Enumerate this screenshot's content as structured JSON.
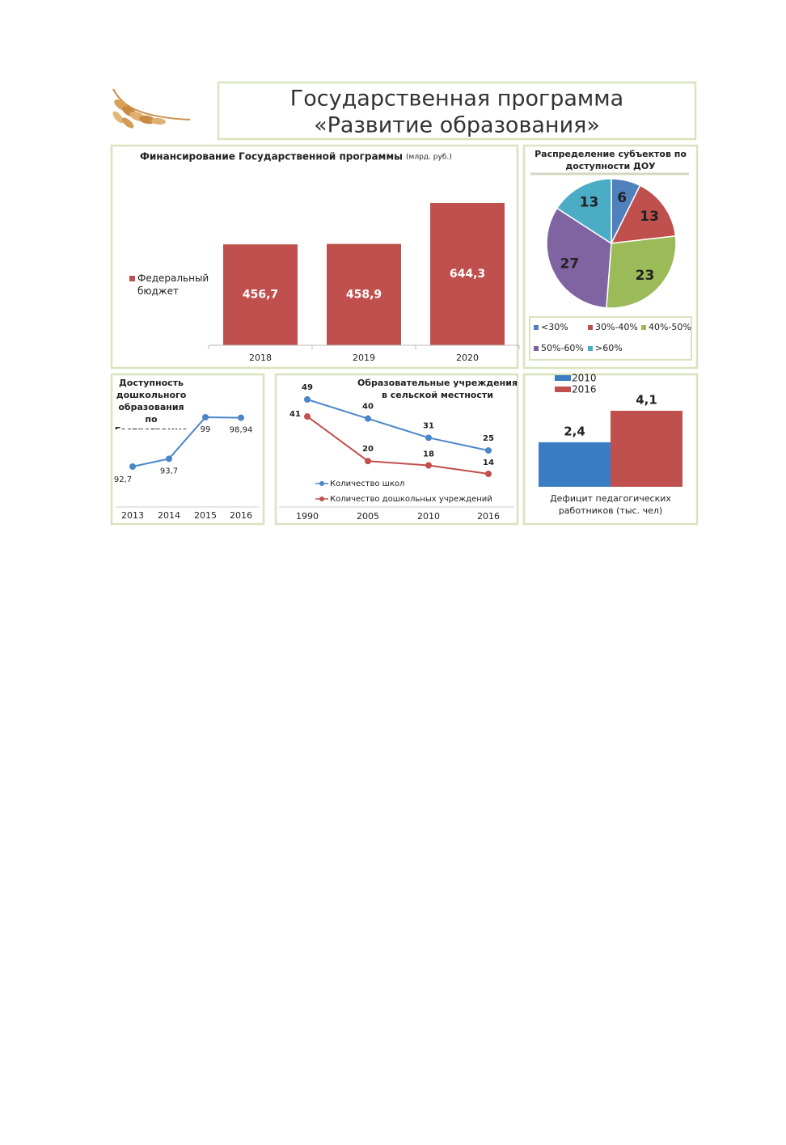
{
  "header": {
    "title": [
      "Государственная программа",
      "«Развитие образования»"
    ]
  },
  "chart_data": [
    {
      "type": "bar",
      "title": "Финансирование Государственной программы",
      "subtitle": "(млрд. руб.)",
      "categories": [
        "2018",
        "2019",
        "2020"
      ],
      "series": [
        {
          "name": "Федеральный бюджет",
          "color": "#c0504d",
          "values": [
            456.7,
            458.9,
            644.3
          ],
          "value_labels": [
            "456,7",
            "458,9",
            "644,3"
          ]
        }
      ]
    },
    {
      "type": "pie",
      "title": "Распределение субъектов по доступности ДОУ",
      "categories": [
        "<30%",
        "30%-40%",
        "40%-50%",
        "50%-60%",
        ">60%"
      ],
      "values": [
        6,
        13,
        23,
        27,
        13
      ],
      "colors": [
        "#4f81bd",
        "#c0504d",
        "#9bbb59",
        "#8064a2",
        "#4bacc6"
      ]
    },
    {
      "type": "line",
      "title": "Доступность дошкольного образования по Госпрограмме",
      "categories": [
        "2013",
        "2014",
        "2015",
        "2016"
      ],
      "series": [
        {
          "color": "#4a86c8",
          "values": [
            92.7,
            93.7,
            99,
            98.94
          ],
          "value_labels": [
            "92,7",
            "93,7",
            "99",
            "98,94"
          ]
        }
      ]
    },
    {
      "type": "line",
      "title": "Образовательные учреждения в сельской местности",
      "categories": [
        "1990",
        "2005",
        "2010",
        "2016"
      ],
      "series": [
        {
          "name": "Количество школ",
          "color": "#4a86c8",
          "values": [
            49,
            40,
            31,
            25
          ]
        },
        {
          "name": "Количество дошкольных учреждений",
          "color": "#c0504d",
          "values": [
            41,
            20,
            18,
            14
          ]
        }
      ]
    },
    {
      "type": "bar",
      "categories": [
        "Дефицит педагогических работников (тыс. чел)"
      ],
      "series": [
        {
          "name": "2010",
          "color": "#3a7dc2",
          "values": [
            2.4
          ],
          "value_labels": [
            "2,4"
          ]
        },
        {
          "name": "2016",
          "color": "#c0504d",
          "values": [
            4.1
          ],
          "value_labels": [
            "4,1"
          ]
        }
      ]
    }
  ]
}
